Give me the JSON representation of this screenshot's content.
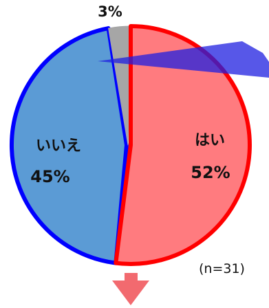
{
  "chart_data": {
    "type": "pie",
    "title": "",
    "sample_note": "(n=31)",
    "slices": [
      {
        "name": "はい",
        "value": 52,
        "label": "52%",
        "fill": "#ff7b7f",
        "stroke": "#ff0000"
      },
      {
        "name": "いいえ",
        "value": 45,
        "label": "45%",
        "fill": "#5b9bd5",
        "stroke": "#0000ff"
      },
      {
        "name": "",
        "value": 3,
        "label": "3%",
        "fill": "#a6a6a6",
        "stroke": "#a6a6a6"
      }
    ]
  },
  "colors": {
    "arrow_red": "#f26a6f",
    "arrow_blue": "#1f1fe0"
  }
}
